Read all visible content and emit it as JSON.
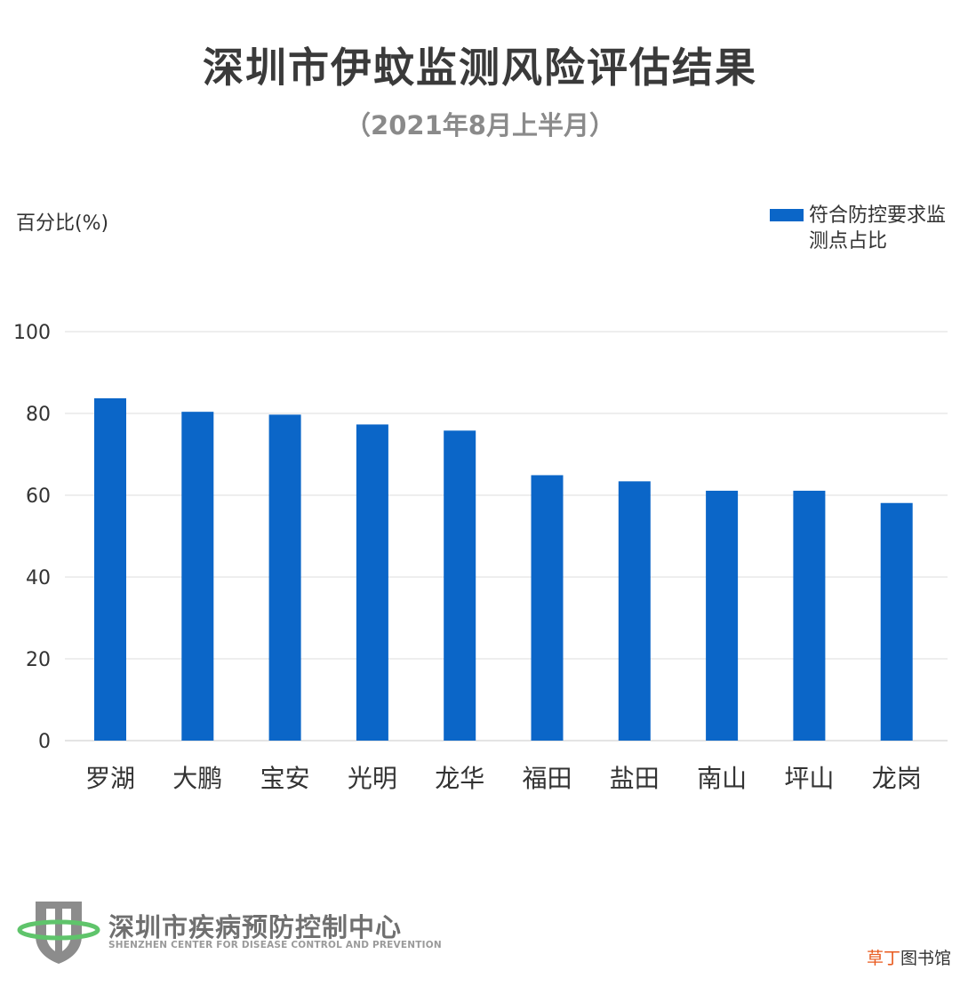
{
  "chart_data": {
    "type": "bar",
    "title": "深圳市伊蚊监测风险评估结果",
    "subtitle": "（2021年8月上半月）",
    "xlabel": "",
    "ylabel": "百分比(%)",
    "categories": [
      "罗湖",
      "大鹏",
      "宝安",
      "光明",
      "龙华",
      "福田",
      "盐田",
      "南山",
      "坪山",
      "龙岗"
    ],
    "series": [
      {
        "name": "符合防控要求监测点占比",
        "color": "#0b66c8",
        "values": [
          83.7,
          80.4,
          79.7,
          77.3,
          75.8,
          64.9,
          63.4,
          61.1,
          61.1,
          58.1
        ]
      }
    ],
    "ylim": [
      0,
      100
    ],
    "yticks": [
      0,
      20,
      40,
      60,
      80,
      100
    ],
    "grid": true,
    "legend_position": "top-right"
  },
  "logo": {
    "name_cn": "深圳市疾病预防控制中心",
    "name_en": "SHENZHEN CENTER FOR DISEASE CONTROL AND PREVENTION"
  },
  "watermark": {
    "accent": "草丁",
    "rest": "图书馆"
  }
}
